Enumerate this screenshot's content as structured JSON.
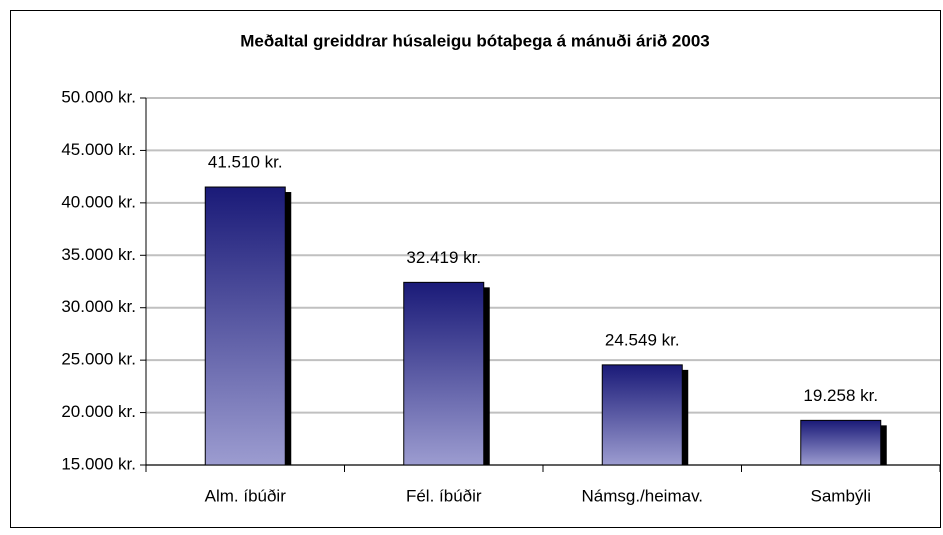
{
  "chart_data": {
    "type": "bar",
    "title": "Meðaltal greiddrar húsaleigu bótaþega á mánuði árið 2003",
    "categories": [
      "Alm. íbúðir",
      "Fél. íbúðir",
      "Námsg./heimav.",
      "Sambýli"
    ],
    "values": [
      41510,
      32419,
      24549,
      19258
    ],
    "value_labels": [
      "41.510 kr.",
      "32.419 kr.",
      "24.549 kr.",
      "19.258 kr."
    ],
    "color": [
      "#1a1a78",
      "#9c9cd0"
    ],
    "ylim": [
      15000,
      50000
    ],
    "yticks": [
      {
        "value": 15000,
        "label": "15.000 kr."
      },
      {
        "value": 20000,
        "label": "20.000 kr."
      },
      {
        "value": 25000,
        "label": "25.000 kr."
      },
      {
        "value": 30000,
        "label": "30.000 kr."
      },
      {
        "value": 35000,
        "label": "35.000 kr."
      },
      {
        "value": 40000,
        "label": "40.000 kr."
      },
      {
        "value": 45000,
        "label": "45.000 kr."
      },
      {
        "value": 50000,
        "label": "50.000 kr."
      }
    ],
    "grid": true
  }
}
